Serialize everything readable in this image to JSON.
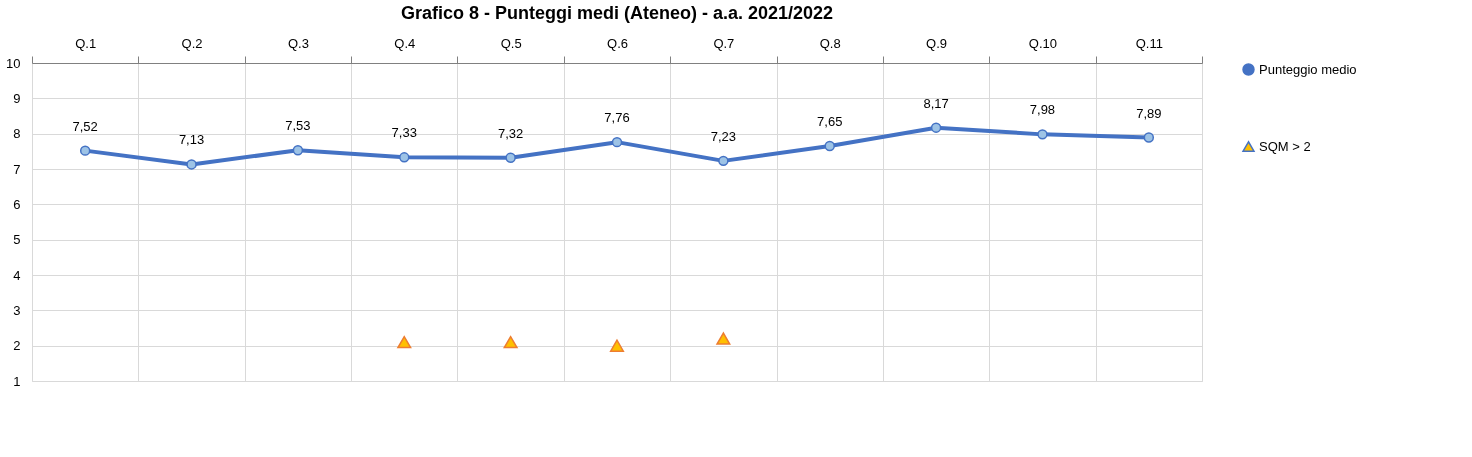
{
  "chart_data": {
    "type": "line",
    "title": "Grafico 8 - Punteggi medi (Ateneo) - a.a. 2021/2022",
    "categories": [
      "Q.1",
      "Q.2",
      "Q.3",
      "Q.4",
      "Q.5",
      "Q.6",
      "Q.7",
      "Q.8",
      "Q.9",
      "Q.10",
      "Q.11"
    ],
    "ylim": [
      1,
      10
    ],
    "yticks": [
      1,
      2,
      3,
      4,
      5,
      6,
      7,
      8,
      9,
      10
    ],
    "grid": true,
    "legend": "right",
    "series": [
      {
        "name": "Punteggio medio",
        "color": "#4472c4",
        "marker": "circle",
        "values": [
          7.52,
          7.13,
          7.53,
          7.33,
          7.32,
          7.76,
          7.23,
          7.65,
          8.17,
          7.98,
          7.89
        ],
        "value_labels": [
          "7,52",
          "7,13",
          "7,53",
          "7,33",
          "7,32",
          "7,76",
          "7,23",
          "7,65",
          "8,17",
          "7,98",
          "7,89"
        ]
      },
      {
        "name": "SQM > 2",
        "type": "scatter",
        "color": "#ffc000",
        "marker": "triangle",
        "values": [
          null,
          null,
          null,
          2.1,
          2.1,
          2.0,
          2.2,
          null,
          null,
          null,
          null
        ]
      }
    ]
  }
}
